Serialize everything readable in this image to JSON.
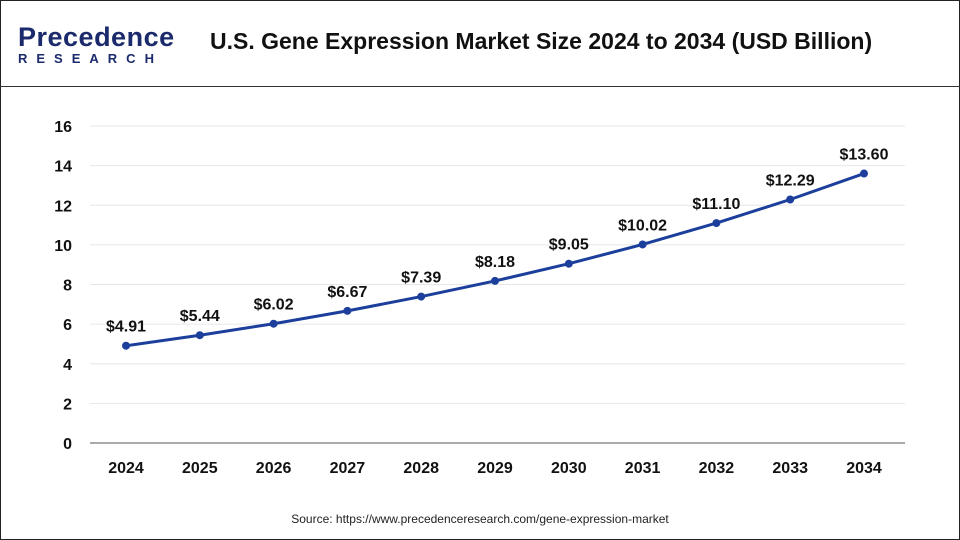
{
  "header": {
    "logo_line1": "Precedence",
    "logo_line2": "RESEARCH",
    "title": "U.S. Gene Expression Market Size 2024 to 2034 (USD Billion)"
  },
  "source": "Source: https://www.precedenceresearch.com/gene-expression-market",
  "chart_data": {
    "type": "line",
    "title": "U.S. Gene Expression Market Size 2024 to 2034 (USD Billion)",
    "categories": [
      "2024",
      "2025",
      "2026",
      "2027",
      "2028",
      "2029",
      "2030",
      "2031",
      "2032",
      "2033",
      "2034"
    ],
    "values": [
      4.91,
      5.44,
      6.02,
      6.67,
      7.39,
      8.18,
      9.05,
      10.02,
      11.1,
      12.29,
      13.6
    ],
    "labels": [
      "$4.91",
      "$5.44",
      "$6.02",
      "$6.67",
      "$7.39",
      "$8.18",
      "$9.05",
      "$10.02",
      "$11.10",
      "$12.29",
      "$13.60"
    ],
    "ylim": [
      0,
      16
    ],
    "yticks": [
      "0",
      "2",
      "4",
      "6",
      "8",
      "10",
      "12",
      "14",
      "16"
    ],
    "grid": true,
    "line_color": "#1c3f9c"
  }
}
